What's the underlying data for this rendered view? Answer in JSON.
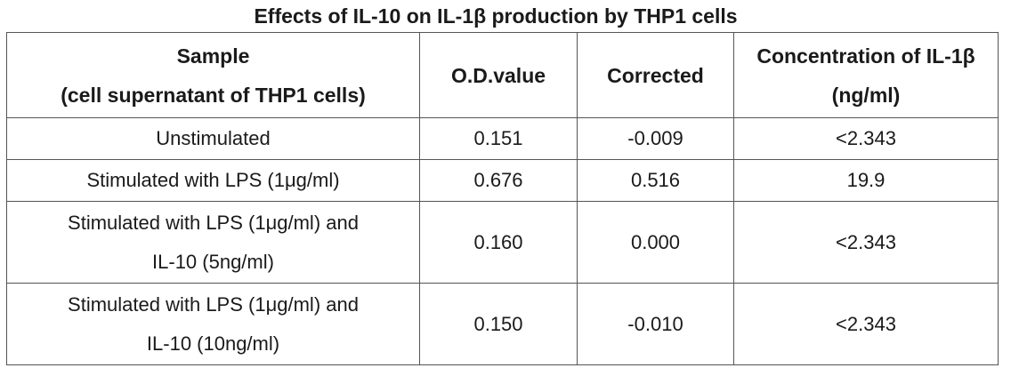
{
  "title": "Effects of IL-10 on IL-1β production by THP1 cells",
  "headers": {
    "sample_line1": "Sample",
    "sample_line2": "(cell supernatant of THP1 cells)",
    "od": "O.D.value",
    "corrected": "Corrected",
    "conc_line1": "Concentration of IL-1β",
    "conc_line2": "(ng/ml)"
  },
  "rows": [
    {
      "sample_line1": "Unstimulated",
      "sample_line2": "",
      "od": "0.151",
      "corrected": "-0.009",
      "concentration": "<2.343"
    },
    {
      "sample_line1": "Stimulated with LPS (1μg/ml)",
      "sample_line2": "",
      "od": "0.676",
      "corrected": "0.516",
      "concentration": "19.9"
    },
    {
      "sample_line1": "Stimulated with LPS (1μg/ml) and",
      "sample_line2": "IL-10 (5ng/ml)",
      "od": "0.160",
      "corrected": "0.000",
      "concentration": "<2.343"
    },
    {
      "sample_line1": "Stimulated with LPS (1μg/ml) and",
      "sample_line2": "IL-10 (10ng/ml)",
      "od": "0.150",
      "corrected": "-0.010",
      "concentration": "<2.343"
    }
  ]
}
